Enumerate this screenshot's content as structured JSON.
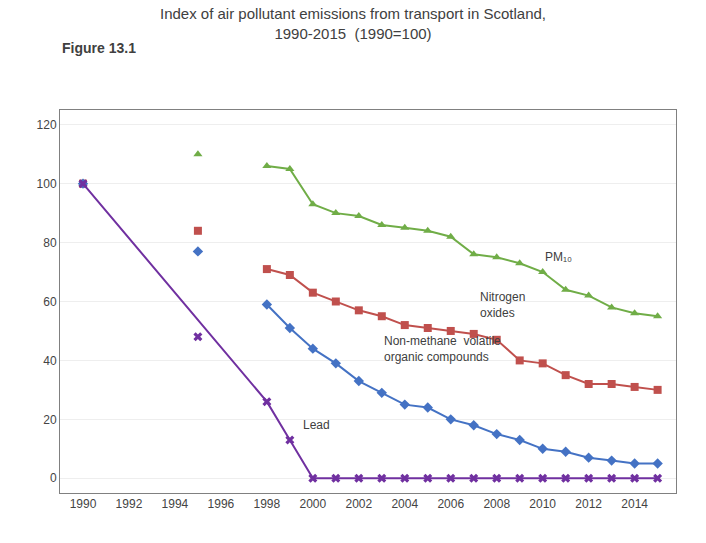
{
  "chart_data": {
    "type": "line",
    "title": "Index of air pollutant emissions from transport in Scotland,\n1990-2015  (1990=100)",
    "xlim": [
      1989,
      2015.8
    ],
    "xticks": [
      1990,
      1992,
      1994,
      1996,
      1998,
      2000,
      2002,
      2004,
      2006,
      2008,
      2010,
      2012,
      2014
    ],
    "ylim": [
      -5,
      125
    ],
    "yticks": [
      0,
      20,
      40,
      60,
      80,
      100,
      120
    ],
    "grid": true,
    "series": [
      {
        "x": [
          1998,
          1999,
          2000,
          2001,
          2002,
          2003,
          2004,
          2005,
          2006,
          2007,
          2008,
          2009,
          2010,
          2011,
          2012,
          2013,
          2014,
          2015
        ],
        "values": [
          106,
          105,
          93,
          90,
          89,
          86,
          85,
          84,
          82,
          76,
          75,
          73,
          70,
          64,
          62,
          58,
          56,
          55
        ],
        "color": "#70AD47",
        "marker": "triangle-up",
        "line_style": "solid"
      },
      {
        "x": [
          1990,
          1995
        ],
        "values": [
          100,
          110
        ],
        "color": "#70AD47",
        "marker": "triangle-up",
        "line_style": "none"
      },
      {
        "x": [
          1998,
          1999,
          2000,
          2001,
          2002,
          2003,
          2004,
          2005,
          2006,
          2007,
          2008,
          2009,
          2010,
          2011,
          2012,
          2013,
          2014,
          2015
        ],
        "values": [
          71,
          69,
          63,
          60,
          57,
          55,
          52,
          51,
          50,
          49,
          47,
          40,
          39,
          35,
          32,
          32,
          31,
          30
        ],
        "color": "#C0504D",
        "marker": "square",
        "line_style": "solid"
      },
      {
        "x": [
          1990,
          1995
        ],
        "values": [
          100,
          84
        ],
        "color": "#C0504D",
        "marker": "square",
        "line_style": "none"
      },
      {
        "x": [
          1998,
          1999,
          2000,
          2001,
          2002,
          2003,
          2004,
          2005,
          2006,
          2007,
          2008,
          2009,
          2010,
          2011,
          2012,
          2013,
          2014,
          2015
        ],
        "values": [
          59,
          51,
          44,
          39,
          33,
          29,
          25,
          24,
          20,
          18,
          15,
          13,
          10,
          9,
          7,
          6,
          5,
          5
        ],
        "color": "#4472C4",
        "marker": "diamond",
        "line_style": "solid"
      },
      {
        "x": [
          1990,
          1995
        ],
        "values": [
          100,
          77
        ],
        "color": "#4472C4",
        "marker": "diamond",
        "line_style": "none"
      },
      {
        "x": [
          1990,
          1998,
          1999,
          2000,
          2001,
          2002,
          2003,
          2004,
          2005,
          2006,
          2007,
          2008,
          2009,
          2010,
          2011,
          2012,
          2013,
          2014,
          2015
        ],
        "values": [
          100,
          26,
          13,
          0,
          0,
          0,
          0,
          0,
          0,
          0,
          0,
          0,
          0,
          0,
          0,
          0,
          0,
          0,
          0
        ],
        "color": "#7030A0",
        "marker": "x",
        "line_style": "solid"
      },
      {
        "x": [
          1995
        ],
        "values": [
          48
        ],
        "color": "#7030A0",
        "marker": "x",
        "line_style": "none"
      }
    ],
    "annotations": [
      {
        "text": "Figure 13.1"
      },
      {
        "text": "PM₁₀",
        "x": 2010,
        "y": 72
      },
      {
        "text": "Nitrogen\noxides",
        "x": 2007.2,
        "y": 53
      },
      {
        "text": "Non-methane  volatile\norganic compounds",
        "x": 2003,
        "y": 38
      },
      {
        "text": "Lead",
        "x": 1999.5,
        "y": 15
      }
    ]
  }
}
